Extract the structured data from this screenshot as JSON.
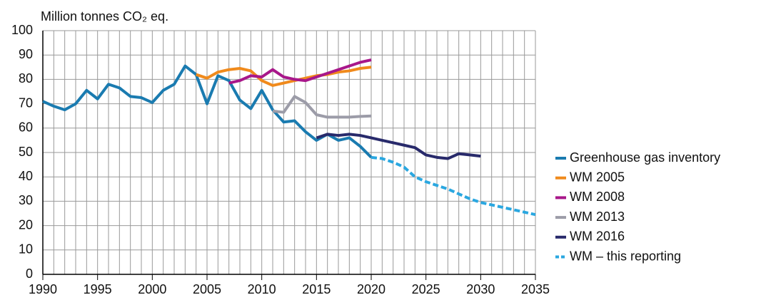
{
  "chart_data": {
    "type": "line",
    "ylabel": "Million tonnes CO₂ eq.",
    "x": [
      1990,
      1991,
      1992,
      1993,
      1994,
      1995,
      1996,
      1997,
      1998,
      1999,
      2000,
      2001,
      2002,
      2003,
      2004,
      2005,
      2006,
      2007,
      2008,
      2009,
      2010,
      2011,
      2012,
      2013,
      2014,
      2015,
      2016,
      2017,
      2018,
      2019,
      2020,
      2021,
      2022,
      2023,
      2024,
      2025,
      2026,
      2027,
      2028,
      2029,
      2030,
      2031,
      2032,
      2033,
      2034,
      2035
    ],
    "xlim": [
      1990,
      2035
    ],
    "xticks": [
      1990,
      1995,
      2000,
      2005,
      2010,
      2015,
      2020,
      2025,
      2030,
      2035
    ],
    "ylim": [
      0,
      100
    ],
    "yticks": [
      0,
      10,
      20,
      30,
      40,
      50,
      60,
      70,
      80,
      90,
      100
    ],
    "grid": true,
    "legend": "right",
    "series": [
      {
        "name": "Greenhouse gas inventory",
        "color": "#1a7bb0",
        "style": "solid",
        "values": [
          71,
          69,
          67.5,
          70,
          75.5,
          72,
          78,
          76.5,
          73,
          72.5,
          70.5,
          75.5,
          78,
          85.5,
          82,
          70,
          81.5,
          79.5,
          71.5,
          68,
          75.5,
          67.5,
          62.5,
          63,
          58.5,
          55,
          57.5,
          55,
          56,
          52.5,
          48,
          null,
          null,
          null,
          null,
          null,
          null,
          null,
          null,
          null,
          null,
          null,
          null,
          null,
          null,
          null
        ]
      },
      {
        "name": "WM 2005",
        "color": "#f08a1c",
        "style": "solid",
        "values": [
          null,
          null,
          null,
          null,
          null,
          null,
          null,
          null,
          null,
          null,
          null,
          null,
          null,
          null,
          82,
          80.5,
          83,
          84,
          84.5,
          83.5,
          79.5,
          77.5,
          78.5,
          79.5,
          80.5,
          81.5,
          82,
          83,
          83.5,
          84.5,
          85,
          null,
          null,
          null,
          null,
          null,
          null,
          null,
          null,
          null,
          null,
          null,
          null,
          null,
          null,
          null
        ]
      },
      {
        "name": "WM 2008",
        "color": "#a8178a",
        "style": "solid",
        "values": [
          null,
          null,
          null,
          null,
          null,
          null,
          null,
          null,
          null,
          null,
          null,
          null,
          null,
          null,
          null,
          null,
          null,
          78.5,
          79.5,
          81.5,
          81,
          84,
          81,
          80,
          79.5,
          81,
          82.5,
          84,
          85.5,
          87,
          88,
          null,
          null,
          null,
          null,
          null,
          null,
          null,
          null,
          null,
          null,
          null,
          null,
          null,
          null,
          null
        ]
      },
      {
        "name": "WM 2013",
        "color": "#9c9ca8",
        "style": "solid",
        "values": [
          null,
          null,
          null,
          null,
          null,
          null,
          null,
          null,
          null,
          null,
          null,
          null,
          null,
          null,
          null,
          null,
          null,
          null,
          null,
          null,
          null,
          67,
          66.5,
          73,
          70.5,
          65.5,
          64.5,
          64.5,
          64.5,
          64.8,
          65,
          null,
          null,
          null,
          null,
          null,
          null,
          null,
          null,
          null,
          null,
          null,
          null,
          null,
          null,
          null
        ]
      },
      {
        "name": "WM 2016",
        "color": "#282a6b",
        "style": "solid",
        "values": [
          null,
          null,
          null,
          null,
          null,
          null,
          null,
          null,
          null,
          null,
          null,
          null,
          null,
          null,
          null,
          null,
          null,
          null,
          null,
          null,
          null,
          null,
          null,
          null,
          null,
          56,
          57.5,
          57,
          57.5,
          57,
          56,
          55,
          54,
          53,
          52,
          49,
          48,
          47.5,
          49.5,
          49,
          48.5,
          null,
          null,
          null,
          null,
          null
        ]
      },
      {
        "name": "WM – this reporting",
        "color": "#2aa7e0",
        "style": "dashed",
        "values": [
          null,
          null,
          null,
          null,
          null,
          null,
          null,
          null,
          null,
          null,
          null,
          null,
          null,
          null,
          null,
          null,
          null,
          null,
          null,
          null,
          null,
          null,
          null,
          null,
          null,
          null,
          null,
          null,
          null,
          null,
          48,
          47.5,
          46,
          44,
          40,
          38,
          36.5,
          35,
          33,
          31,
          29.5,
          28.5,
          27.5,
          26.5,
          25.5,
          24.5
        ]
      }
    ]
  }
}
